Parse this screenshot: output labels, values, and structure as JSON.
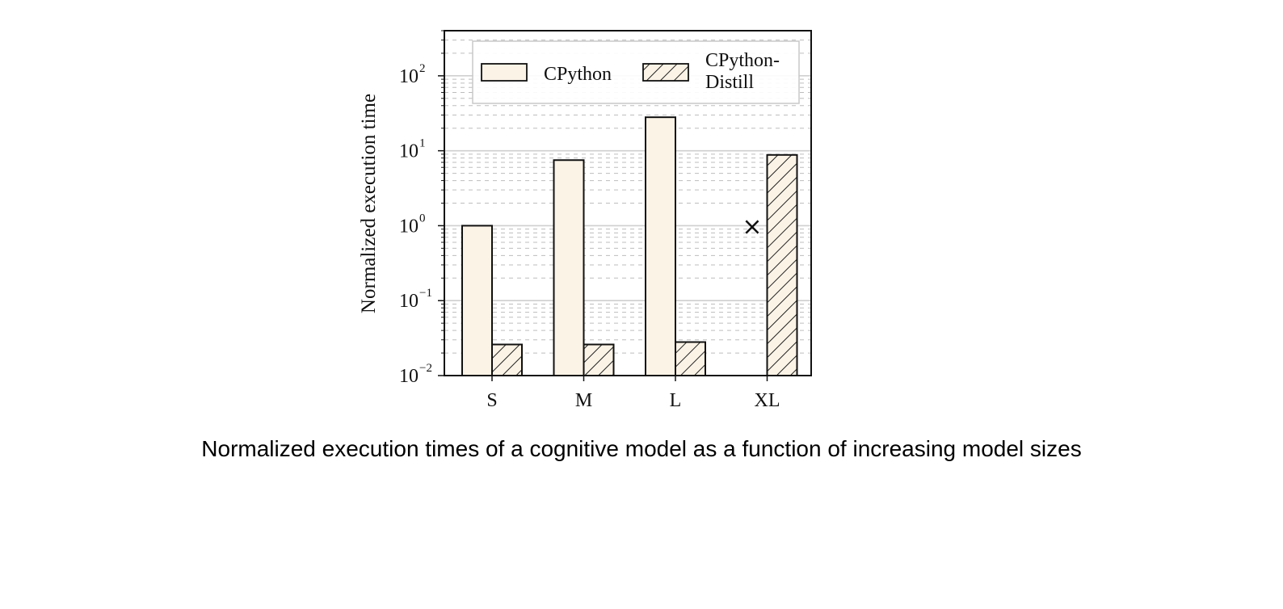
{
  "caption": "Normalized execution times of a cognitive model as a function of increasing model sizes",
  "chart_data": {
    "type": "bar",
    "ylabel": "Normalized execution time",
    "xlabel": "",
    "yscale": "log",
    "ylim": [
      0.01,
      400
    ],
    "yticks": [
      {
        "base": "10",
        "exp": "−2",
        "value": 0.01
      },
      {
        "base": "10",
        "exp": "−1",
        "value": 0.1
      },
      {
        "base": "10",
        "exp": "0",
        "value": 1
      },
      {
        "base": "10",
        "exp": "1",
        "value": 10
      },
      {
        "base": "10",
        "exp": "2",
        "value": 100
      }
    ],
    "categories": [
      "S",
      "M",
      "L",
      "XL"
    ],
    "series": [
      {
        "name": "CPython",
        "values": [
          1.0,
          7.5,
          28,
          null
        ],
        "fill": "#fbf3e6",
        "pattern": "none"
      },
      {
        "name": "CPython-Distill",
        "values": [
          0.026,
          0.026,
          0.028,
          8.8
        ],
        "fill": "#fbf3e6",
        "pattern": "hatch"
      }
    ],
    "missing_marker": {
      "category": "XL",
      "series": "CPython",
      "symbol": "×"
    },
    "legend": {
      "position": "top",
      "entries": [
        {
          "lines": [
            "CPython"
          ]
        },
        {
          "lines": [
            "CPython-",
            "Distill"
          ]
        }
      ]
    },
    "grid": true
  }
}
